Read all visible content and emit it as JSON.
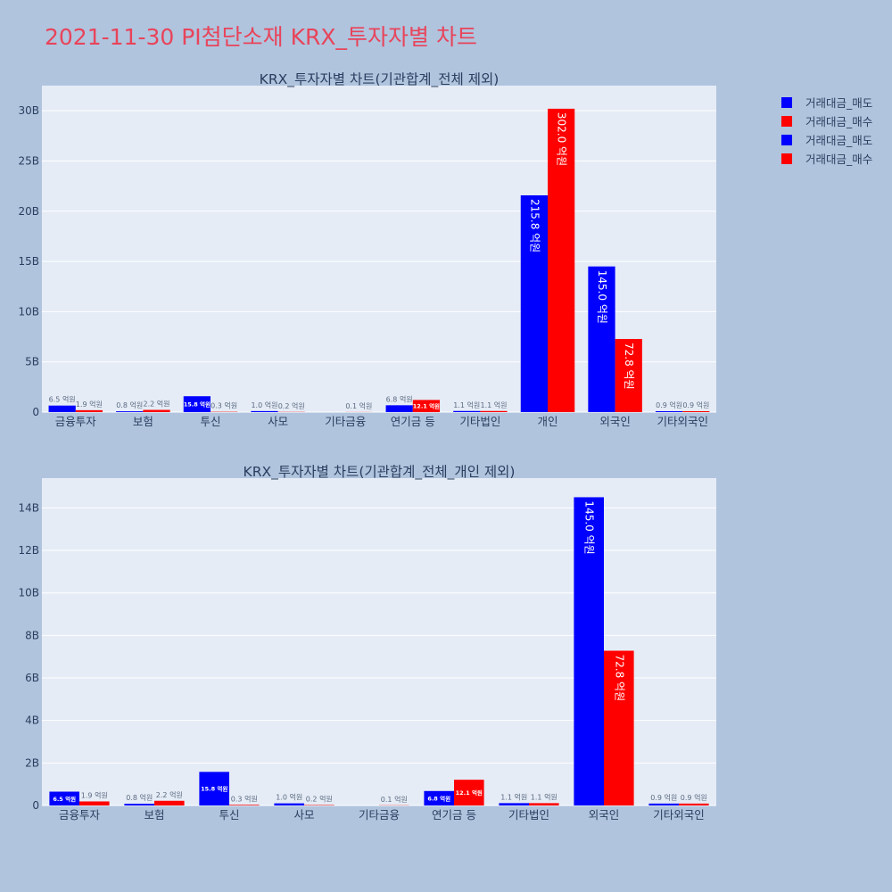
{
  "page": {
    "title": "2021-11-30 PI첨단소재 KRX_투자자별 차트"
  },
  "legend": [
    {
      "label": "거래대금_매도",
      "color": "#0000ff"
    },
    {
      "label": "거래대금_매수",
      "color": "#ff0000"
    },
    {
      "label": "거래대금_매도",
      "color": "#0000ff"
    },
    {
      "label": "거래대금_매수",
      "color": "#ff0000"
    }
  ],
  "colors": {
    "sell": "#0000ff",
    "buy": "#ff0000",
    "plot_bg": "#e5ecf6",
    "grid": "#ffffff",
    "text": "#2a3f5f"
  },
  "chart_data": [
    {
      "type": "bar",
      "title": "KRX_투자자별 차트(기관합계_전체 제외)",
      "categories": [
        "금융투자",
        "보험",
        "투신",
        "사모",
        "기타금융",
        "연기금 등",
        "기타법인",
        "개인",
        "외국인",
        "기타외국인"
      ],
      "series": [
        {
          "name": "거래대금_매도",
          "values": [
            0.65,
            0.08,
            1.58,
            0.1,
            0,
            0.68,
            0.11,
            21.58,
            14.5,
            0.09
          ],
          "labels": [
            "6.5 억원",
            "0.8 억원",
            "15.8 억원",
            "1.0 억원",
            "",
            "6.8 억원",
            "1.1 억원",
            "215.8 억원",
            "145.0 억원",
            "0.9 억원"
          ]
        },
        {
          "name": "거래대금_매수",
          "values": [
            0.19,
            0.22,
            0.03,
            0.02,
            0.01,
            1.21,
            0.11,
            30.2,
            7.28,
            0.09
          ],
          "labels": [
            "1.9 억원",
            "2.2 억원",
            "0.3 억원",
            "0.2 억원",
            "0.1 억원",
            "12.1 억원",
            "1.1 억원",
            "302.0 억원",
            "72.8 억원",
            "0.9 억원"
          ]
        }
      ],
      "yunit": "B",
      "ylim": [
        0,
        32.5
      ],
      "yticks": [
        0,
        5,
        10,
        15,
        20,
        25,
        30
      ],
      "ytick_labels": [
        "0",
        "5B",
        "10B",
        "15B",
        "20B",
        "25B",
        "30B"
      ],
      "grid": true,
      "legend_position": "top-right"
    },
    {
      "type": "bar",
      "title": "KRX_투자자별 차트(기관합계_전체_개인 제외)",
      "categories": [
        "금융투자",
        "보험",
        "투신",
        "사모",
        "기타금융",
        "연기금 등",
        "기타법인",
        "외국인",
        "기타외국인"
      ],
      "series": [
        {
          "name": "거래대금_매도",
          "values": [
            0.65,
            0.08,
            1.58,
            0.1,
            0,
            0.68,
            0.11,
            14.5,
            0.09
          ],
          "labels": [
            "6.5 억원",
            "0.8 억원",
            "15.8 억원",
            "1.0 억원",
            "",
            "6.8 억원",
            "1.1 억원",
            "145.0 억원",
            "0.9 억원"
          ]
        },
        {
          "name": "거래대금_매수",
          "values": [
            0.19,
            0.22,
            0.03,
            0.02,
            0.01,
            1.21,
            0.11,
            7.28,
            0.09
          ],
          "labels": [
            "1.9 억원",
            "2.2 억원",
            "0.3 억원",
            "0.2 억원",
            "0.1 억원",
            "12.1 억원",
            "1.1 억원",
            "72.8 억원",
            "0.9 억원"
          ]
        }
      ],
      "yunit": "B",
      "ylim": [
        0,
        15.4
      ],
      "yticks": [
        0,
        2,
        4,
        6,
        8,
        10,
        12,
        14
      ],
      "ytick_labels": [
        "0",
        "2B",
        "4B",
        "6B",
        "8B",
        "10B",
        "12B",
        "14B"
      ],
      "grid": true,
      "legend_position": "top-right"
    }
  ]
}
